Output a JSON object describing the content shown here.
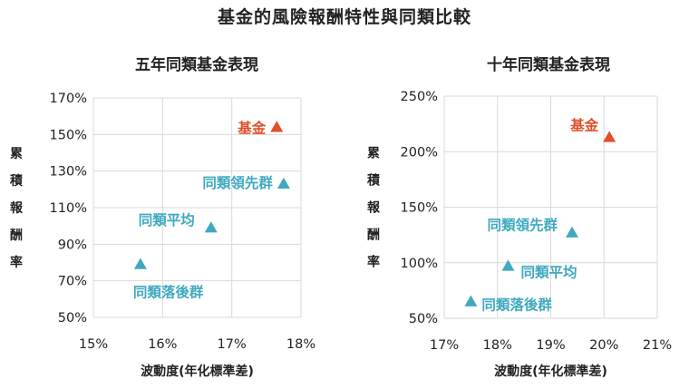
{
  "title": "基金的風險報酬特性與同類比較",
  "colors": {
    "fund": "#e0502a",
    "peer": "#3fa9c0",
    "grid": "#d9d9d9"
  },
  "chart_data": [
    {
      "type": "scatter",
      "title": "五年同類基金表現",
      "xlabel": "波動度(年化標準差)",
      "ylabel": "累積報酬率",
      "xlim": [
        0.15,
        0.18
      ],
      "ylim": [
        0.5,
        1.7
      ],
      "x_ticks": [
        "15%",
        "16%",
        "17%",
        "18%"
      ],
      "y_ticks": [
        "50%",
        "70%",
        "90%",
        "110%",
        "130%",
        "150%",
        "170%"
      ],
      "grid": true,
      "points": [
        {
          "label": "基金",
          "x": 0.1765,
          "y": 1.54,
          "color": "fund"
        },
        {
          "label": "同類領先群",
          "x": 0.1775,
          "y": 1.23,
          "color": "peer"
        },
        {
          "label": "同類平均",
          "x": 0.167,
          "y": 0.99,
          "color": "peer"
        },
        {
          "label": "同類落後群",
          "x": 0.1568,
          "y": 0.79,
          "color": "peer"
        }
      ]
    },
    {
      "type": "scatter",
      "title": "十年同類基金表現",
      "xlabel": "波動度(年化標準差)",
      "ylabel": "累積報酬率",
      "xlim": [
        0.17,
        0.21
      ],
      "ylim": [
        0.5,
        2.5
      ],
      "x_ticks": [
        "17%",
        "18%",
        "19%",
        "20%",
        "21%"
      ],
      "y_ticks": [
        "50%",
        "100%",
        "150%",
        "200%",
        "250%"
      ],
      "grid": true,
      "points": [
        {
          "label": "基金",
          "x": 0.201,
          "y": 2.13,
          "color": "fund"
        },
        {
          "label": "同類領先群",
          "x": 0.194,
          "y": 1.27,
          "color": "peer"
        },
        {
          "label": "同類平均",
          "x": 0.182,
          "y": 0.97,
          "color": "peer"
        },
        {
          "label": "同類落後群",
          "x": 0.175,
          "y": 0.65,
          "color": "peer"
        }
      ]
    }
  ]
}
